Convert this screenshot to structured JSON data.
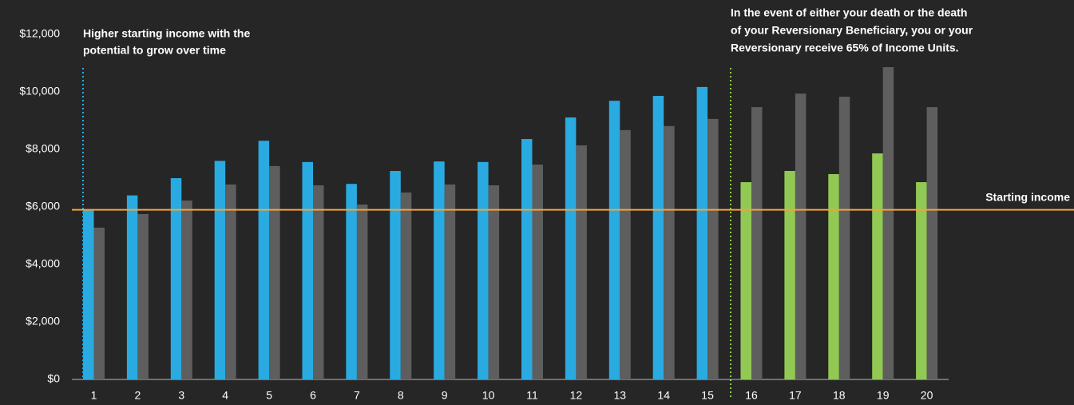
{
  "chart_data": {
    "type": "bar",
    "categories": [
      "1",
      "2",
      "3",
      "4",
      "5",
      "6",
      "7",
      "8",
      "9",
      "10",
      "11",
      "12",
      "13",
      "14",
      "15",
      "16",
      "17",
      "18",
      "19",
      "20"
    ],
    "series": [
      {
        "color": "#29abe2",
        "values": [
          5900,
          6400,
          7000,
          7600,
          8300,
          7560,
          6800,
          7250,
          7580,
          7560,
          8360,
          9110,
          9690,
          9860,
          10170,
          null,
          null,
          null,
          null,
          null
        ]
      },
      {
        "color": "#92c955",
        "values": [
          null,
          null,
          null,
          null,
          null,
          null,
          null,
          null,
          null,
          null,
          null,
          null,
          null,
          null,
          null,
          6860,
          7250,
          7140,
          7860,
          6860
        ]
      },
      {
        "color": "#5e5e5e",
        "values": [
          5280,
          5750,
          6220,
          6780,
          7420,
          6750,
          6080,
          6500,
          6780,
          6750,
          7470,
          8140,
          8670,
          8810,
          9060,
          9470,
          9940,
          9830,
          10860,
          9470
        ]
      }
    ],
    "ylim": [
      0,
      12000
    ],
    "yticks": [
      {
        "value": 0,
        "label": "$0"
      },
      {
        "value": 2000,
        "label": "$2,000"
      },
      {
        "value": 4000,
        "label": "$4,000"
      },
      {
        "value": 6000,
        "label": "$6,000"
      },
      {
        "value": 8000,
        "label": "$8,000"
      },
      {
        "value": 10000,
        "label": "$10,000"
      },
      {
        "value": 12000,
        "label": "$12,000"
      }
    ],
    "reference_line": {
      "value": 5900,
      "label": "Starting income",
      "color": "#f7a23b"
    },
    "annotations": [
      {
        "lines": [
          "Higher starting income with the",
          "potential to grow over time"
        ],
        "color": "#29abe2"
      },
      {
        "lines": [
          "In the event of either your death or the death",
          "of your Reversionary Beneficiary, you or your",
          "Reversionary receive 65% of Income Units."
        ],
        "color": "#92c955"
      }
    ]
  }
}
